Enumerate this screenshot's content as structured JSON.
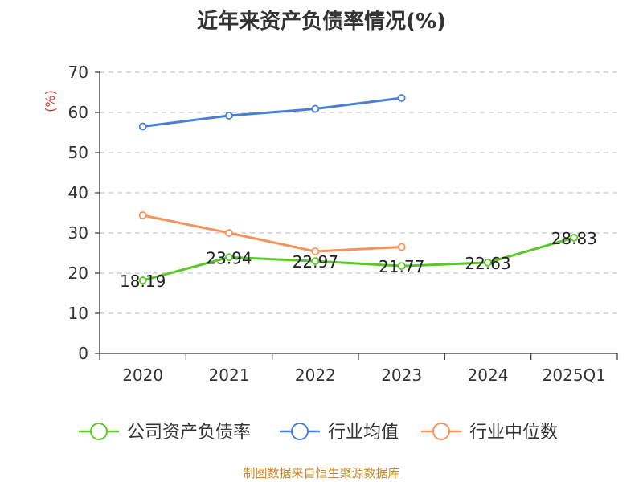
{
  "title": "近年来资产负债率情况(%)",
  "footer": "制图数据来自恒生聚源数据库",
  "chart_data": {
    "type": "line",
    "title": "近年来资产负债率情况(%)",
    "ylabel": "(%)",
    "xlabel": "",
    "categories": [
      "2020",
      "2021",
      "2022",
      "2023",
      "2024",
      "2025Q1"
    ],
    "ylim": [
      0,
      70
    ],
    "yticks": [
      0,
      10,
      20,
      30,
      40,
      50,
      60,
      70
    ],
    "grid": true,
    "legend_position": "bottom",
    "series": [
      {
        "name": "公司资产负债率",
        "color": "#5cc528",
        "values": [
          18.19,
          23.94,
          22.97,
          21.77,
          22.63,
          28.83
        ],
        "value_labels": [
          "18.19",
          "23.94",
          "22.97",
          "21.77",
          "22.63",
          "28.83"
        ]
      },
      {
        "name": "行业均值",
        "color": "#4a7fd8",
        "values": [
          56.5,
          59.2,
          60.9,
          63.6,
          null,
          null
        ]
      },
      {
        "name": "行业中位数",
        "color": "#f5935a",
        "values": [
          34.4,
          30.0,
          25.4,
          26.5,
          null,
          null
        ]
      }
    ]
  }
}
